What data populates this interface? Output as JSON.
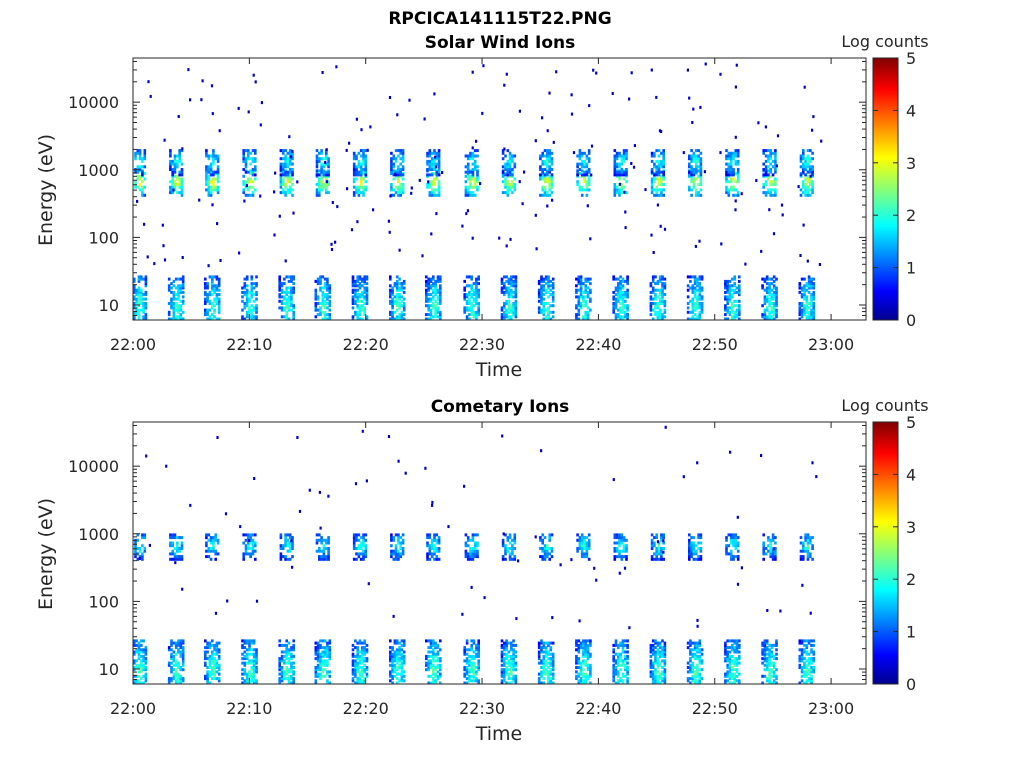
{
  "figure": {
    "suptitle": "RPCICA141115T22.PNG"
  },
  "colormap": {
    "name": "jet",
    "stops": [
      "#00008f",
      "#0000ff",
      "#00ffff",
      "#ffff00",
      "#ff0000",
      "#800000"
    ]
  },
  "chart_data": [
    {
      "type": "heatmap",
      "title": "Solar Wind Ions",
      "xlabel": "Time",
      "ylabel": "Energy (eV)",
      "xlim": [
        "22:00",
        "23:03"
      ],
      "ylim": [
        6,
        45000
      ],
      "yscale": "log",
      "x_ticks": [
        "22:00",
        "22:10",
        "22:20",
        "22:30",
        "22:40",
        "22:50",
        "23:00"
      ],
      "y_ticks": [
        10,
        100,
        1000,
        10000
      ],
      "y_tick_labels": [
        "10",
        "100",
        "1000",
        "10000"
      ],
      "colorbar": {
        "label": "Log counts",
        "range": [
          0,
          5
        ],
        "ticks": [
          "0",
          "1",
          "2",
          "3",
          "4",
          "5"
        ]
      },
      "scan_times_min": [
        0.5,
        3.7,
        6.8,
        10.0,
        13.2,
        16.3,
        19.5,
        22.7,
        25.8,
        29.1,
        32.3,
        35.5,
        38.7,
        41.9,
        45.1,
        48.3,
        51.5,
        54.7,
        57.9
      ],
      "peak_clusters": [
        {
          "energy_eV": 10,
          "peak_log_counts": 2.2
        },
        {
          "energy_eV": 700,
          "peak_log_counts": 3.1
        },
        {
          "energy_eV": 1400,
          "peak_log_counts": 2.0
        }
      ],
      "grid": false
    },
    {
      "type": "heatmap",
      "title": "Cometary Ions",
      "xlabel": "Time",
      "ylabel": "Energy (eV)",
      "xlim": [
        "22:00",
        "23:03"
      ],
      "ylim": [
        6,
        45000
      ],
      "yscale": "log",
      "x_ticks": [
        "22:00",
        "22:10",
        "22:20",
        "22:30",
        "22:40",
        "22:50",
        "23:00"
      ],
      "y_ticks": [
        10,
        100,
        1000,
        10000
      ],
      "y_tick_labels": [
        "10",
        "100",
        "1000",
        "10000"
      ],
      "colorbar": {
        "label": "Log counts",
        "range": [
          0,
          5
        ],
        "ticks": [
          "0",
          "1",
          "2",
          "3",
          "4",
          "5"
        ]
      },
      "scan_times_min": [
        0.5,
        3.7,
        6.8,
        10.0,
        13.2,
        16.3,
        19.5,
        22.7,
        25.8,
        29.1,
        32.3,
        35.5,
        38.7,
        41.9,
        45.1,
        48.3,
        51.5,
        54.7,
        57.9
      ],
      "peak_clusters": [
        {
          "energy_eV": 10,
          "peak_log_counts": 2.3
        },
        {
          "energy_eV": 700,
          "peak_log_counts": 2.0
        }
      ],
      "grid": false
    }
  ]
}
